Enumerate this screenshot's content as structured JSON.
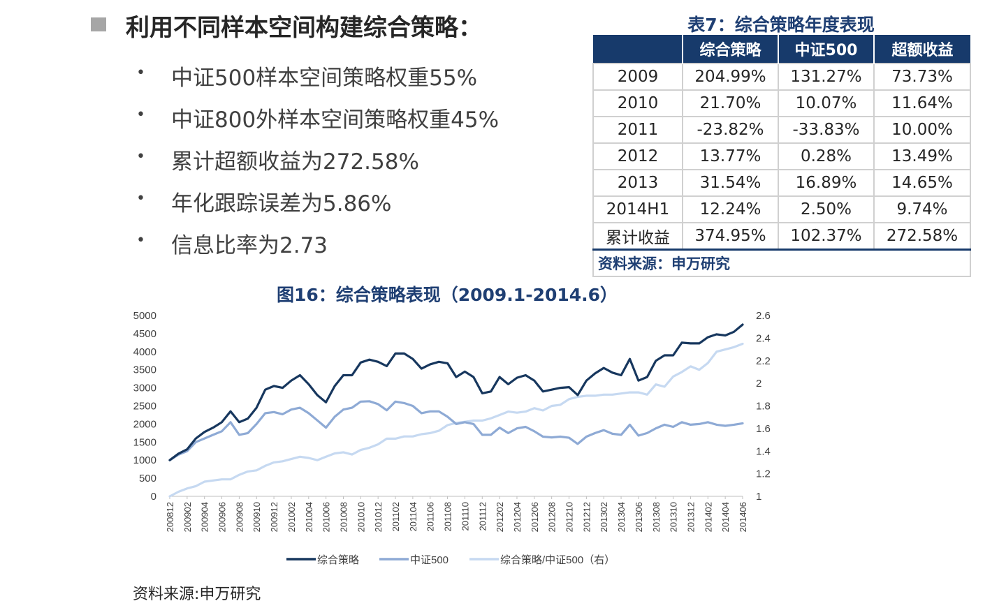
{
  "heading": "利用不同样本空间构建综合策略：",
  "bullets": [
    "中证500样本空间策略权重55%",
    "中证800外样本空间策略权重45%",
    "累计超额收益为272.58%",
    "年化跟踪误差为5.86%",
    "信息比率为2.73"
  ],
  "table": {
    "title": "表7：综合策略年度表现",
    "columns": [
      "",
      "综合策略",
      "中证500",
      "超额收益"
    ],
    "rows": [
      [
        "2009",
        "204.99%",
        "131.27%",
        "73.73%"
      ],
      [
        "2010",
        "21.70%",
        "10.07%",
        "11.64%"
      ],
      [
        "2011",
        "-23.82%",
        "-33.83%",
        "10.00%"
      ],
      [
        "2012",
        "13.77%",
        "0.28%",
        "13.49%"
      ],
      [
        "2013",
        "31.54%",
        "16.89%",
        "14.65%"
      ],
      [
        "2014H1",
        "12.24%",
        "2.50%",
        "9.74%"
      ],
      [
        "累计收益",
        "374.95%",
        "102.37%",
        "272.58%"
      ]
    ],
    "source": "资料来源：申万研究"
  },
  "chart_data": {
    "type": "line",
    "title": "图16：综合策略表现（2009.1-2014.6）",
    "x": [
      "200812",
      "200901",
      "200902",
      "200903",
      "200904",
      "200905",
      "200906",
      "200907",
      "200908",
      "200909",
      "200910",
      "200911",
      "200912",
      "201001",
      "201002",
      "201003",
      "201004",
      "201005",
      "201006",
      "201007",
      "201008",
      "201009",
      "201010",
      "201011",
      "201012",
      "201101",
      "201102",
      "201103",
      "201104",
      "201105",
      "201106",
      "201107",
      "201108",
      "201109",
      "201110",
      "201111",
      "201112",
      "201201",
      "201202",
      "201203",
      "201204",
      "201205",
      "201206",
      "201207",
      "201208",
      "201209",
      "201210",
      "201211",
      "201212",
      "201301",
      "201302",
      "201303",
      "201304",
      "201305",
      "201306",
      "201307",
      "201308",
      "201309",
      "201310",
      "201311",
      "201312",
      "201401",
      "201402",
      "201403",
      "201404",
      "201405",
      "201406"
    ],
    "xtick_labels": [
      "200812",
      "200902",
      "200904",
      "200906",
      "200908",
      "200910",
      "200912",
      "201002",
      "201004",
      "201006",
      "201008",
      "201010",
      "201012",
      "201102",
      "201104",
      "201106",
      "201108",
      "201110",
      "201112",
      "201202",
      "201204",
      "201206",
      "201208",
      "201210",
      "201212",
      "201302",
      "201304",
      "201306",
      "201308",
      "201310",
      "201312",
      "201402",
      "201404",
      "201406"
    ],
    "y_left": {
      "min": 0,
      "max": 5000,
      "ticks": [
        "0",
        "500",
        "1000",
        "1500",
        "2000",
        "2500",
        "3000",
        "3500",
        "4000",
        "4500",
        "5000"
      ]
    },
    "y_right": {
      "min": 1,
      "max": 2.6,
      "ticks": [
        "1",
        "1.2",
        "1.4",
        "1.6",
        "1.8",
        "2",
        "2.2",
        "2.4",
        "2.6"
      ]
    },
    "series": [
      {
        "name": "综合策略",
        "axis": "left",
        "color": "#17375e",
        "values": [
          1000,
          1180,
          1300,
          1600,
          1780,
          1900,
          2050,
          2350,
          2050,
          2150,
          2450,
          2950,
          3050,
          3000,
          3200,
          3350,
          3100,
          2800,
          2600,
          3050,
          3350,
          3350,
          3700,
          3780,
          3720,
          3600,
          3950,
          3950,
          3800,
          3530,
          3650,
          3720,
          3680,
          3300,
          3450,
          3300,
          2850,
          2900,
          3300,
          3100,
          3280,
          3350,
          3200,
          2900,
          2950,
          3000,
          3020,
          2800,
          3200,
          3400,
          3550,
          3420,
          3350,
          3800,
          3200,
          3300,
          3750,
          3900,
          3900,
          4250,
          4230,
          4230,
          4400,
          4480,
          4450,
          4550,
          4750
        ]
      },
      {
        "name": "中证500",
        "axis": "left",
        "color": "#8eaad5",
        "values": [
          1000,
          1150,
          1250,
          1500,
          1600,
          1700,
          1800,
          2050,
          1700,
          1750,
          2000,
          2300,
          2330,
          2270,
          2400,
          2450,
          2300,
          2100,
          1900,
          2200,
          2400,
          2450,
          2620,
          2630,
          2550,
          2380,
          2620,
          2580,
          2500,
          2300,
          2350,
          2350,
          2200,
          2000,
          2050,
          2000,
          1700,
          1700,
          1900,
          1750,
          1880,
          1920,
          1800,
          1650,
          1630,
          1650,
          1620,
          1450,
          1650,
          1750,
          1830,
          1730,
          1700,
          1980,
          1680,
          1750,
          1880,
          1980,
          1920,
          2050,
          1980,
          2000,
          2050,
          1980,
          1950,
          1980,
          2020
        ]
      },
      {
        "name": "综合策略/中证500（右）",
        "axis": "right",
        "color": "#c6d9f1",
        "values": [
          1.0,
          1.04,
          1.07,
          1.09,
          1.13,
          1.14,
          1.15,
          1.15,
          1.19,
          1.22,
          1.23,
          1.27,
          1.3,
          1.31,
          1.33,
          1.35,
          1.34,
          1.32,
          1.35,
          1.38,
          1.39,
          1.37,
          1.41,
          1.43,
          1.46,
          1.51,
          1.51,
          1.53,
          1.53,
          1.55,
          1.56,
          1.58,
          1.63,
          1.65,
          1.66,
          1.67,
          1.67,
          1.69,
          1.72,
          1.75,
          1.74,
          1.75,
          1.78,
          1.76,
          1.8,
          1.81,
          1.86,
          1.88,
          1.89,
          1.89,
          1.9,
          1.9,
          1.91,
          1.92,
          1.92,
          1.9,
          1.99,
          1.97,
          2.06,
          2.1,
          2.15,
          2.12,
          2.18,
          2.28,
          2.3,
          2.32,
          2.35
        ]
      }
    ],
    "legend_position": "bottom",
    "grid": false
  },
  "source_note": "资料来源:申万研究"
}
